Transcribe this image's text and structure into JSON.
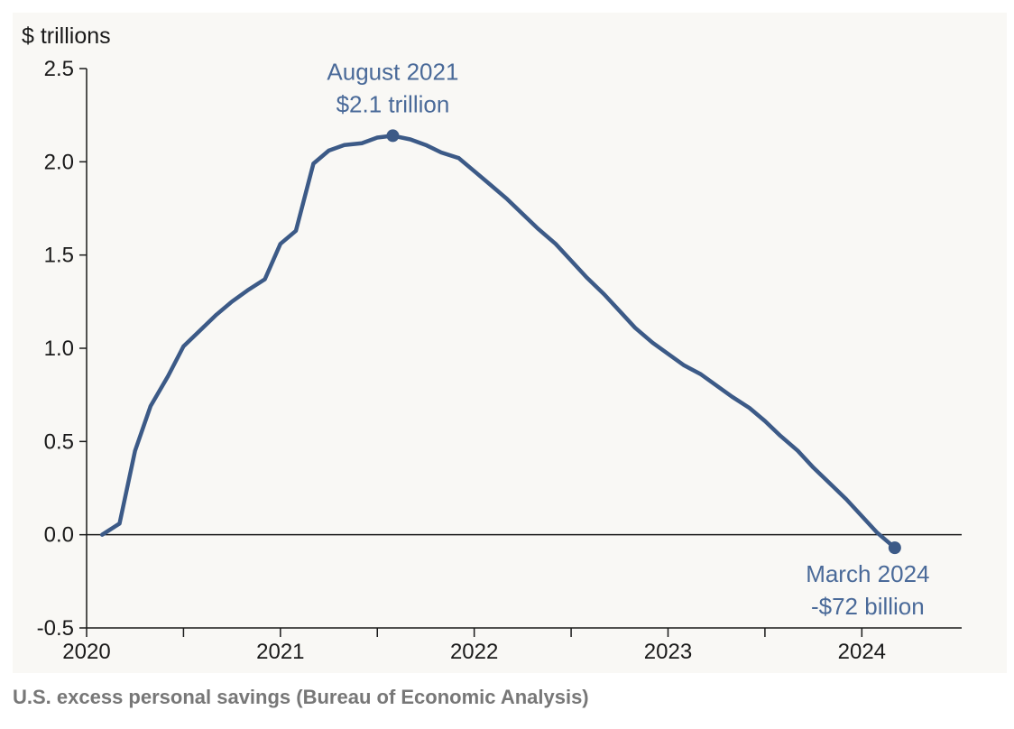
{
  "chart_data": {
    "type": "line",
    "ylabel": "$ trillions",
    "ylim": [
      -0.5,
      2.5
    ],
    "xlim": [
      2020.0,
      2024.45
    ],
    "y_ticks": [
      "2.5",
      "2.0",
      "1.5",
      "1.0",
      "0.5",
      "0.0",
      "-0.5"
    ],
    "y_tick_values": [
      2.5,
      2.0,
      1.5,
      1.0,
      0.5,
      0.0,
      -0.5
    ],
    "x_ticks": [
      "2020",
      "2021",
      "2022",
      "2023",
      "2024"
    ],
    "x_tick_values": [
      2020,
      2021,
      2022,
      2023,
      2024
    ],
    "grid": false,
    "line_color": "#3c5a87",
    "series": [
      {
        "x": [
          2020.08,
          2020.17,
          2020.25,
          2020.33,
          2020.42,
          2020.5,
          2020.58,
          2020.67,
          2020.75,
          2020.83,
          2020.92,
          2021.0,
          2021.08,
          2021.17,
          2021.25,
          2021.33,
          2021.42,
          2021.5,
          2021.58,
          2021.67,
          2021.75,
          2021.83,
          2021.92,
          2022.0,
          2022.08,
          2022.17,
          2022.25,
          2022.33,
          2022.42,
          2022.5,
          2022.58,
          2022.67,
          2022.75,
          2022.83,
          2022.92,
          2023.0,
          2023.08,
          2023.17,
          2023.25,
          2023.33,
          2023.42,
          2023.5,
          2023.58,
          2023.67,
          2023.75,
          2023.83,
          2023.92,
          2024.0,
          2024.08,
          2024.17
        ],
        "y": [
          0.0,
          0.06,
          0.45,
          0.69,
          0.85,
          1.01,
          1.09,
          1.18,
          1.25,
          1.31,
          1.37,
          1.56,
          1.63,
          1.99,
          2.06,
          2.09,
          2.1,
          2.13,
          2.14,
          2.12,
          2.09,
          2.05,
          2.02,
          1.95,
          1.88,
          1.8,
          1.72,
          1.64,
          1.56,
          1.47,
          1.38,
          1.29,
          1.2,
          1.11,
          1.03,
          0.97,
          0.91,
          0.86,
          0.8,
          0.74,
          0.68,
          0.61,
          0.53,
          0.45,
          0.36,
          0.28,
          0.19,
          0.1,
          0.01,
          -0.07
        ]
      }
    ],
    "annotations": [
      {
        "x": 2021.58,
        "y": 2.14,
        "line1": "August 2021",
        "line2": "$2.1 trillion"
      },
      {
        "x": 2024.17,
        "y": -0.07,
        "line1": "March 2024",
        "line2": "-$72 billion"
      }
    ]
  },
  "caption": "U.S. excess personal savings (Bureau of Economic Analysis)"
}
